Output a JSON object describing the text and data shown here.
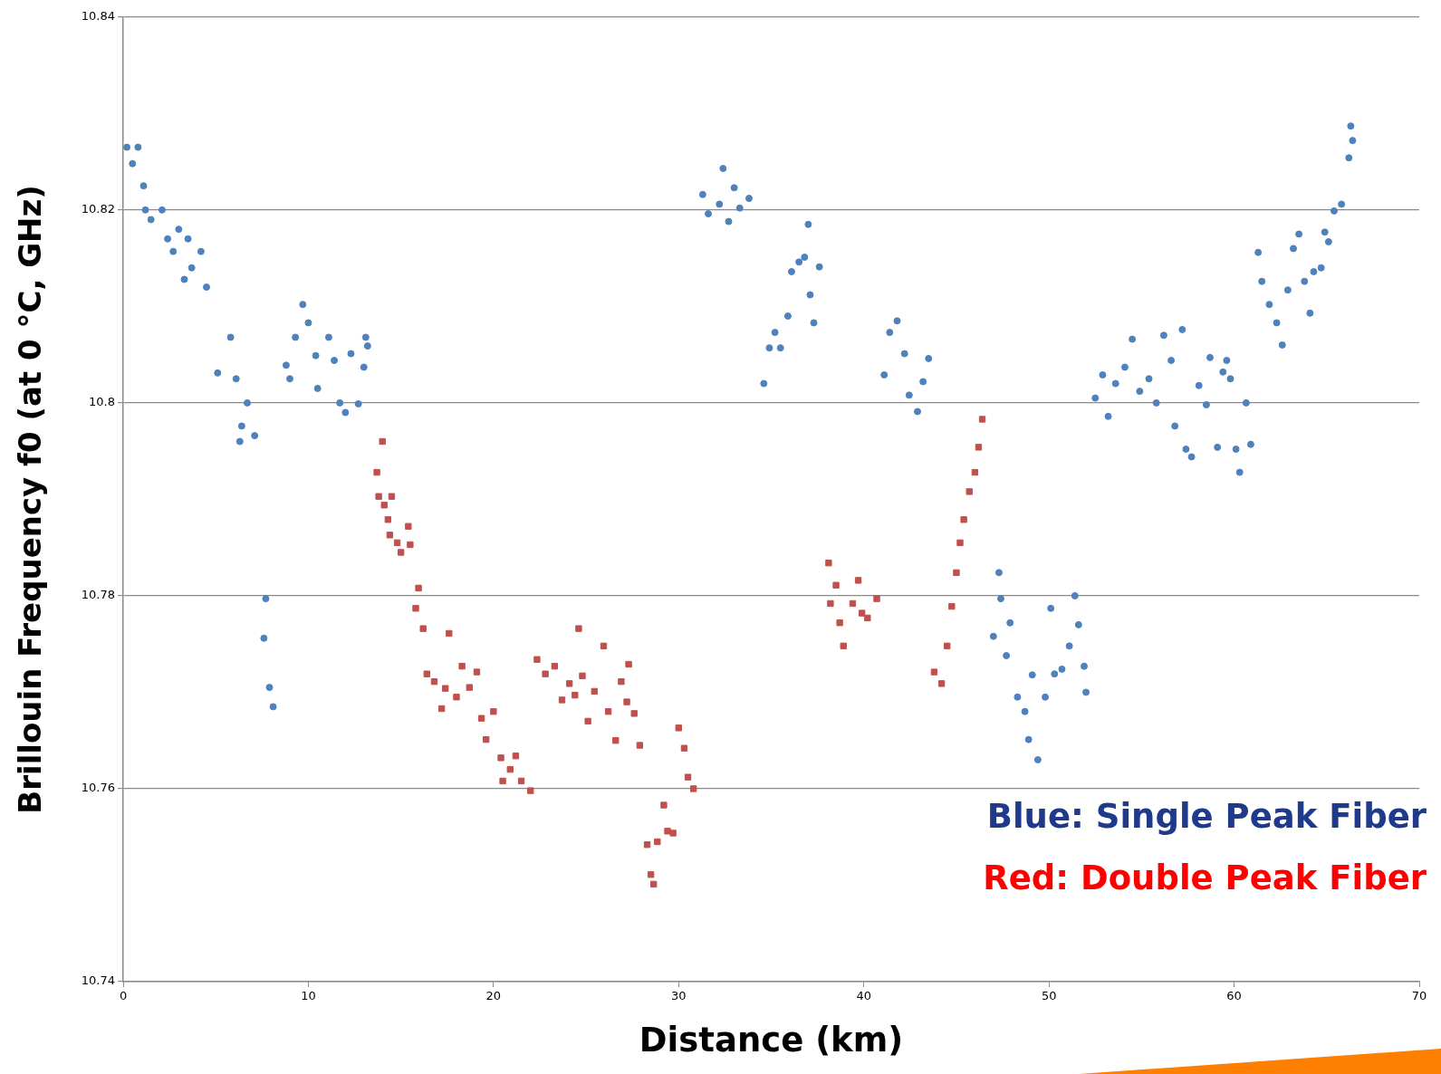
{
  "chart_data": {
    "type": "scatter",
    "xlabel": "Distance (km)",
    "ylabel": "Brillouin Frequency f0 (at 0 °C, GHz)",
    "xlim": [
      0,
      70
    ],
    "xticks": [
      0,
      10,
      20,
      30,
      40,
      50,
      60,
      70
    ],
    "ylim": [
      10.74,
      10.84
    ],
    "yticks": [
      10.74,
      10.76,
      10.78,
      10.8,
      10.82,
      10.84
    ],
    "grid": "y",
    "legend": false,
    "annotations": [
      "Blue: Single Peak Fiber",
      "Red: Double Peak Fiber"
    ],
    "series": [
      {
        "color": "#4f81bd",
        "marker": "circle",
        "x": [
          0.2,
          0.8,
          0.5,
          1.1,
          1.2,
          1.5,
          2.1,
          2.4,
          2.7,
          3.0,
          3.3,
          3.5,
          3.7,
          4.2,
          4.5,
          5.1,
          5.8,
          6.1,
          6.4,
          6.3,
          6.7,
          7.1,
          7.7,
          7.6,
          7.9,
          8.1,
          8.8,
          9.0,
          9.3,
          9.7,
          10.0,
          10.4,
          10.5,
          11.1,
          11.4,
          11.7,
          12.0,
          12.3,
          12.7,
          13.1,
          13.0,
          13.2,
          31.3,
          31.6,
          32.2,
          32.4,
          32.7,
          33.0,
          33.3,
          33.8,
          34.6,
          34.9,
          35.2,
          35.5,
          35.9,
          36.1,
          36.5,
          36.8,
          37.0,
          37.1,
          37.3,
          37.6,
          41.1,
          41.4,
          41.8,
          42.2,
          42.45,
          42.9,
          43.2,
          43.5,
          47.0,
          47.3,
          47.4,
          47.7,
          47.9,
          48.3,
          48.7,
          48.9,
          49.1,
          49.4,
          49.8,
          50.1,
          50.3,
          50.7,
          51.1,
          51.4,
          51.6,
          51.9,
          52.0,
          52.5,
          52.9,
          53.2,
          53.6,
          54.1,
          54.5,
          54.9,
          55.4,
          55.8,
          56.2,
          56.6,
          56.8,
          57.2,
          57.4,
          57.7,
          58.1,
          58.5,
          58.7,
          59.1,
          59.4,
          59.6,
          59.8,
          60.1,
          60.3,
          60.65,
          60.9,
          61.3,
          61.5,
          61.9,
          62.3,
          62.6,
          62.9,
          63.2,
          63.5,
          63.8,
          64.1,
          64.3,
          64.7,
          64.9,
          65.1,
          65.4,
          65.8,
          66.2,
          66.4,
          66.3
        ],
        "values": [
          10.8265,
          10.8265,
          10.8248,
          10.8225,
          10.82,
          10.819,
          10.82,
          10.817,
          10.8157,
          10.818,
          10.8128,
          10.817,
          10.814,
          10.8157,
          10.812,
          10.8031,
          10.8068,
          10.8025,
          10.7976,
          10.796,
          10.8,
          10.7966,
          10.7797,
          10.7756,
          10.7705,
          10.7685,
          10.8039,
          10.8025,
          10.8068,
          10.8102,
          10.8083,
          10.8049,
          10.8015,
          10.8068,
          10.8044,
          10.8,
          10.799,
          10.8051,
          10.7999,
          10.8068,
          10.8037,
          10.8059,
          10.8216,
          10.8196,
          10.8206,
          10.8243,
          10.8188,
          10.8223,
          10.8202,
          10.8212,
          10.802,
          10.8057,
          10.8073,
          10.8057,
          10.809,
          10.8136,
          10.8146,
          10.8151,
          10.8185,
          10.8112,
          10.8083,
          10.8141,
          10.8029,
          10.8073,
          10.8085,
          10.8051,
          10.8008,
          10.7991,
          10.8022,
          10.8046,
          10.7758,
          10.7824,
          10.7797,
          10.7738,
          10.7772,
          10.7695,
          10.768,
          10.7651,
          10.7718,
          10.763,
          10.7695,
          10.7787,
          10.7719,
          10.7724,
          10.7748,
          10.78,
          10.777,
          10.7727,
          10.77,
          10.8005,
          10.8029,
          10.7986,
          10.802,
          10.8037,
          10.8066,
          10.8012,
          10.8025,
          10.8,
          10.807,
          10.8044,
          10.7976,
          10.8076,
          10.7952,
          10.7944,
          10.8018,
          10.7998,
          10.8047,
          10.7954,
          10.8032,
          10.8044,
          10.8025,
          10.7952,
          10.7928,
          10.8,
          10.7957,
          10.8156,
          10.8126,
          10.8102,
          10.8083,
          10.806,
          10.8117,
          10.816,
          10.8175,
          10.8126,
          10.8093,
          10.8136,
          10.814,
          10.8177,
          10.8167,
          10.8199,
          10.8206,
          10.8254,
          10.8272,
          10.8287
        ]
      },
      {
        "color": "#c0504d",
        "marker": "square",
        "x": [
          14.0,
          13.7,
          13.8,
          14.1,
          14.5,
          14.3,
          14.4,
          14.8,
          15.0,
          15.4,
          15.5,
          15.95,
          15.8,
          16.2,
          16.4,
          16.8,
          17.2,
          17.4,
          17.6,
          18.0,
          18.3,
          18.7,
          19.1,
          19.35,
          19.6,
          20.0,
          20.4,
          20.5,
          20.9,
          21.2,
          21.5,
          22.0,
          22.35,
          22.8,
          23.3,
          23.7,
          24.1,
          24.4,
          24.6,
          24.8,
          25.1,
          25.45,
          25.95,
          26.2,
          26.6,
          26.9,
          27.2,
          27.3,
          27.6,
          27.9,
          28.3,
          28.5,
          28.65,
          28.85,
          29.2,
          29.4,
          29.7,
          30.0,
          30.3,
          30.5,
          30.8,
          38.1,
          38.2,
          38.5,
          38.7,
          38.9,
          39.4,
          39.7,
          39.9,
          40.2,
          40.7,
          43.8,
          44.2,
          44.5,
          44.75,
          45.0,
          45.2,
          45.4,
          45.7,
          46.0,
          46.2,
          46.4
        ],
        "values": [
          10.796,
          10.7928,
          10.7903,
          10.7894,
          10.7903,
          10.7879,
          10.7863,
          10.7855,
          10.7845,
          10.7872,
          10.7853,
          10.7808,
          10.7787,
          10.7766,
          10.7719,
          10.7711,
          10.7683,
          10.7704,
          10.7761,
          10.7695,
          10.7727,
          10.7705,
          10.7721,
          10.7673,
          10.7651,
          10.768,
          10.7632,
          10.7608,
          10.762,
          10.7634,
          10.7608,
          10.7598,
          10.7734,
          10.7719,
          10.7727,
          10.7692,
          10.7709,
          10.7697,
          10.7766,
          10.7717,
          10.767,
          10.7701,
          10.7748,
          10.768,
          10.765,
          10.7711,
          10.769,
          10.7729,
          10.7678,
          10.7645,
          10.7542,
          10.7511,
          10.7501,
          10.7545,
          10.7583,
          10.7556,
          10.7554,
          10.7663,
          10.7642,
          10.7612,
          10.76,
          10.7834,
          10.7792,
          10.7811,
          10.7772,
          10.7748,
          10.7792,
          10.7816,
          10.7782,
          10.7777,
          10.7797,
          10.7721,
          10.7709,
          10.7748,
          10.7789,
          10.7824,
          10.7855,
          10.7879,
          10.7908,
          10.7928,
          10.7954,
          10.7983
        ]
      }
    ]
  }
}
